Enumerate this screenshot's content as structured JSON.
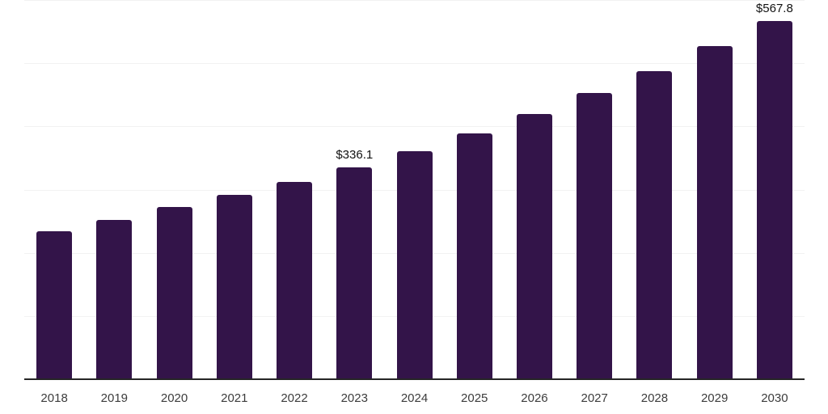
{
  "page": {
    "background_color": "#ffffff"
  },
  "chart_data": {
    "type": "bar",
    "title": "",
    "xlabel": "",
    "ylabel": "",
    "categories": [
      "2018",
      "2019",
      "2020",
      "2021",
      "2022",
      "2023",
      "2024",
      "2025",
      "2026",
      "2027",
      "2028",
      "2029",
      "2030"
    ],
    "values": [
      234.9,
      253.7,
      273.5,
      293.3,
      313.2,
      336.1,
      362.0,
      390.6,
      421.3,
      454.2,
      488.7,
      527.8,
      567.8
    ],
    "labeled_points": [
      {
        "category": "2023",
        "label": "$336.1"
      },
      {
        "category": "2030",
        "label": "$567.8"
      }
    ],
    "ylim": [
      0,
      600
    ],
    "gridline_values": [
      100,
      200,
      300,
      400,
      500,
      600
    ],
    "grid": "horizontal-only",
    "legend": "none",
    "y_axis_tick_labels": "none",
    "colors": {
      "bar_fill": "#331449",
      "gridline": "#f2f2f2",
      "axis_line": "#262626",
      "value_label_text": "#111111",
      "tick_label_text": "#3c3c3c"
    }
  }
}
